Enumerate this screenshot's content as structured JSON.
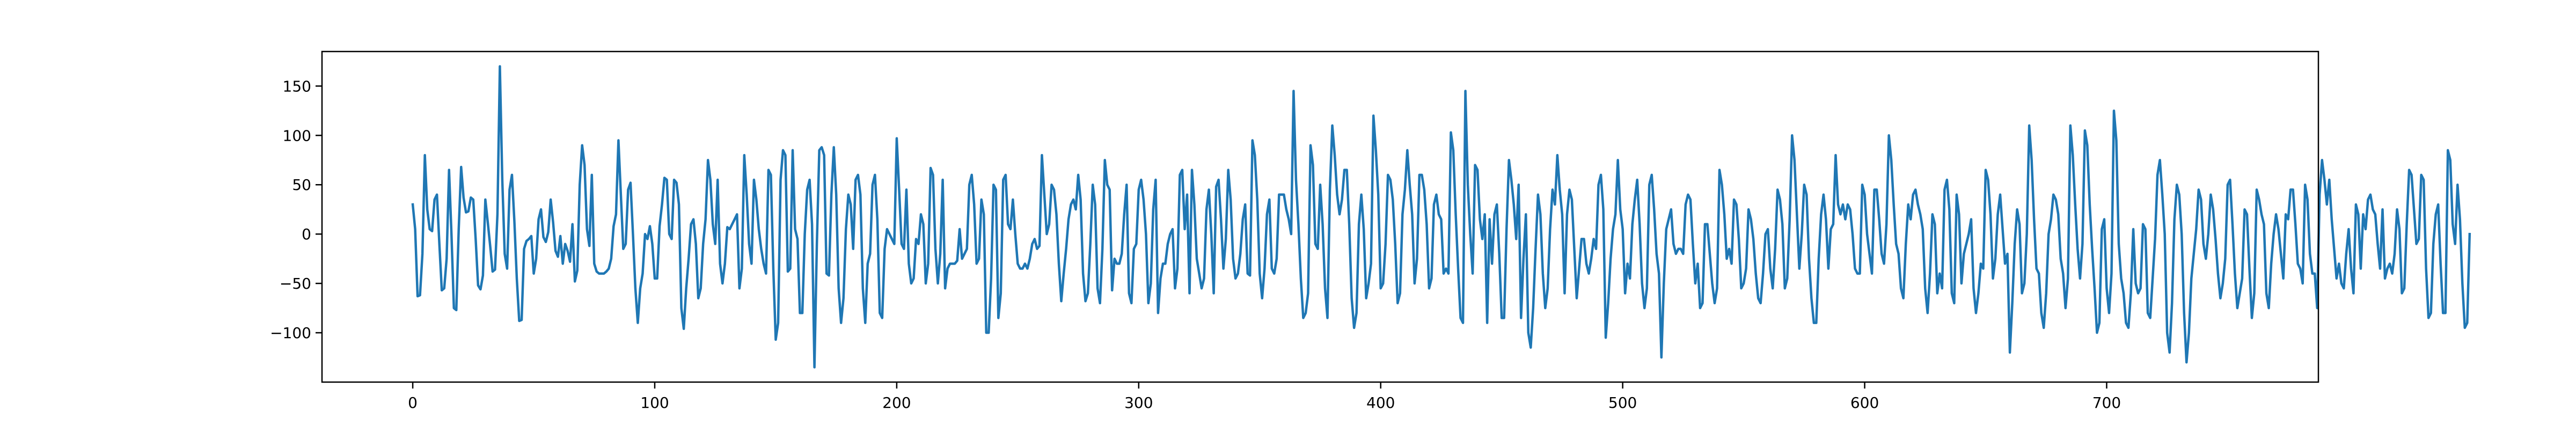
{
  "chart_data": {
    "type": "line",
    "title": "",
    "xlabel": "",
    "ylabel": "",
    "xlim": [
      -37.5,
      787.5
    ],
    "ylim": [
      -150,
      185
    ],
    "grid": false,
    "legend": "none",
    "series_color": "#1f77b4",
    "x_ticks": [
      0,
      100,
      200,
      300,
      400,
      500,
      600,
      700
    ],
    "x_tick_labels": [
      "0",
      "100",
      "200",
      "300",
      "400",
      "500",
      "600",
      "700"
    ],
    "y_ticks": [
      -100,
      -50,
      0,
      50,
      100,
      150
    ],
    "y_tick_labels": [
      "−100",
      "−50",
      "0",
      "50",
      "100",
      "150"
    ],
    "series": [
      {
        "x_start": 0,
        "x_step": 1,
        "values": [
          30,
          5,
          -63,
          -62,
          -20,
          80,
          25,
          5,
          3,
          35,
          40,
          -10,
          -57,
          -55,
          -25,
          65,
          0,
          -75,
          -77,
          5,
          68,
          37,
          22,
          23,
          37,
          35,
          -5,
          -52,
          -56,
          -42,
          35,
          12,
          -12,
          -38,
          -36,
          20,
          170,
          55,
          -20,
          -35,
          45,
          60,
          13,
          -45,
          -88,
          -87,
          -15,
          -7,
          -5,
          -2,
          -40,
          -25,
          15,
          25,
          -3,
          -8,
          2,
          35,
          12,
          -17,
          -23,
          -2,
          -30,
          -10,
          -17,
          -28,
          10,
          -48,
          -37,
          50,
          90,
          70,
          5,
          -12,
          60,
          -30,
          -38,
          -40,
          -40,
          -40,
          -38,
          -35,
          -25,
          8,
          20,
          95,
          40,
          -15,
          -10,
          45,
          52,
          0,
          -55,
          -90,
          -55,
          -40,
          0,
          -5,
          8,
          -10,
          -45,
          -45,
          8,
          30,
          57,
          55,
          0,
          -5,
          55,
          52,
          30,
          -75,
          -96,
          -55,
          -25,
          10,
          15,
          -10,
          -65,
          -55,
          -10,
          15,
          75,
          55,
          10,
          -10,
          55,
          -30,
          -50,
          -30,
          7,
          5,
          10,
          15,
          20,
          -55,
          -35,
          80,
          40,
          -10,
          -30,
          55,
          35,
          5,
          -15,
          -30,
          -40,
          65,
          60,
          -35,
          -107,
          -90,
          55,
          85,
          80,
          -38,
          -35,
          85,
          5,
          -5,
          -80,
          -80,
          0,
          45,
          55,
          10,
          -135,
          -10,
          85,
          88,
          80,
          -40,
          -42,
          40,
          88,
          40,
          -55,
          -90,
          -65,
          5,
          40,
          30,
          -15,
          55,
          60,
          40,
          -55,
          -90,
          -30,
          -20,
          50,
          60,
          15,
          -80,
          -85,
          -15,
          5,
          0,
          -5,
          -10,
          97,
          45,
          -10,
          -15,
          45,
          -30,
          -50,
          -45,
          -5,
          -10,
          20,
          10,
          -50,
          -30,
          67,
          60,
          -15,
          -50,
          -20,
          55,
          -55,
          -35,
          -30,
          -30,
          -30,
          -27,
          5,
          -25,
          -20,
          -15,
          50,
          60,
          30,
          -30,
          -25,
          35,
          20,
          -100,
          -100,
          -45,
          50,
          45,
          -85,
          -60,
          55,
          60,
          10,
          5,
          35,
          0,
          -30,
          -35,
          -35,
          -30,
          -35,
          -25,
          -10,
          -5,
          -15,
          -12,
          80,
          40,
          0,
          10,
          50,
          45,
          20,
          -30,
          -68,
          -40,
          -15,
          15,
          30,
          35,
          25,
          60,
          35,
          -40,
          -68,
          -60,
          -10,
          50,
          30,
          -55,
          -70,
          -15,
          75,
          50,
          45,
          -57,
          -25,
          -30,
          -30,
          -20,
          20,
          50,
          -60,
          -70,
          -15,
          -10,
          45,
          55,
          35,
          0,
          -70,
          -50,
          25,
          55,
          -80,
          -45,
          -30,
          -30,
          -10,
          0,
          5,
          -55,
          -35,
          60,
          65,
          5,
          40,
          -60,
          65,
          30,
          -25,
          -40,
          -55,
          -45,
          25,
          45,
          0,
          -60,
          48,
          55,
          15,
          -35,
          -5,
          65,
          35,
          -25,
          -45,
          -40,
          -20,
          15,
          30,
          -40,
          -42,
          95,
          80,
          35,
          -40,
          -65,
          -35,
          20,
          35,
          -35,
          -40,
          -25,
          40,
          40,
          40,
          25,
          15,
          0,
          145,
          55,
          10,
          -45,
          -85,
          -80,
          -60,
          90,
          70,
          -10,
          -15,
          50,
          10,
          -55,
          -85,
          45,
          110,
          80,
          40,
          20,
          35,
          65,
          65,
          10,
          -65,
          -95,
          -80,
          10,
          40,
          5,
          -65,
          -50,
          -30,
          120,
          85,
          40,
          -55,
          -50,
          -10,
          60,
          55,
          35,
          -10,
          -70,
          -60,
          20,
          45,
          85,
          50,
          20,
          -50,
          -25,
          60,
          60,
          45,
          10,
          -55,
          -45,
          30,
          40,
          20,
          15,
          -40,
          -35,
          -40,
          103,
          85,
          20,
          -35,
          -85,
          -90,
          145,
          50,
          0,
          -40,
          70,
          65,
          15,
          -5,
          20,
          -90,
          15,
          -30,
          20,
          30,
          -20,
          -85,
          -85,
          5,
          75,
          55,
          30,
          -5,
          50,
          -85,
          -25,
          20,
          -100,
          -115,
          -75,
          -15,
          40,
          20,
          -40,
          -75,
          -55,
          5,
          45,
          30,
          80,
          45,
          20,
          -60,
          20,
          45,
          35,
          -15,
          -65,
          -35,
          -5,
          -5,
          -30,
          -40,
          -25,
          -5,
          -15,
          50,
          60,
          25,
          -105,
          -70,
          -25,
          5,
          20,
          75,
          25,
          5,
          -60,
          -30,
          -45,
          10,
          35,
          55,
          10,
          -50,
          -75,
          -55,
          50,
          60,
          25,
          -20,
          -40,
          -125,
          -50,
          5,
          15,
          25,
          -10,
          -20,
          -15,
          -15,
          -20,
          30,
          40,
          35,
          -10,
          -50,
          -30,
          -75,
          -70,
          10,
          10,
          -20,
          -50,
          -70,
          -55,
          65,
          50,
          20,
          -25,
          -15,
          -30,
          35,
          30,
          -5,
          -55,
          -50,
          -35,
          25,
          15,
          -5,
          -40,
          -65,
          -70,
          -40,
          0,
          5,
          -35,
          -55,
          -15,
          45,
          35,
          10,
          -55,
          -45,
          15,
          100,
          75,
          20,
          -35,
          0,
          50,
          40,
          -25,
          -65,
          -90,
          -90,
          -25,
          20,
          40,
          15,
          -35,
          5,
          10,
          80,
          30,
          20,
          30,
          15,
          30,
          25,
          0,
          -35,
          -40,
          -40,
          50,
          40,
          0,
          -20,
          -40,
          45,
          45,
          15,
          -20,
          -30,
          10,
          100,
          75,
          30,
          -10,
          -20,
          -55,
          -65,
          -10,
          30,
          15,
          40,
          45,
          30,
          20,
          5,
          -55,
          -80,
          -40,
          20,
          10,
          -60,
          -40,
          -55,
          45,
          55,
          25,
          -60,
          -70,
          40,
          20,
          -50,
          -20,
          -10,
          0,
          15,
          -55,
          -80,
          -60,
          -30,
          -35,
          65,
          55,
          20,
          -45,
          -25,
          20,
          40,
          5,
          -30,
          -20,
          -120,
          -70,
          -10,
          25,
          10,
          -60,
          -50,
          0,
          110,
          75,
          15,
          -35,
          -40,
          -80,
          -95,
          -60,
          0,
          15,
          40,
          35,
          20,
          -25,
          -40,
          -75,
          -45,
          110,
          80,
          30,
          -15,
          -45,
          -10,
          105,
          90,
          30,
          -15,
          -55,
          -100,
          -90,
          5,
          15,
          -55,
          -80,
          -40,
          125,
          95,
          -10,
          -45,
          -60,
          -90,
          -95,
          -60,
          5,
          -50,
          -60,
          -55,
          10,
          5,
          -80,
          -85,
          -45,
          -5,
          60,
          75,
          40,
          0,
          -100,
          -120,
          -70,
          15,
          50,
          40,
          0,
          -80,
          -130,
          -100,
          -45,
          -20,
          5,
          45,
          35,
          -10,
          -25,
          0,
          40,
          25,
          -5,
          -40,
          -65,
          -50,
          -25,
          50,
          55,
          10,
          -40,
          -75,
          -60,
          -45,
          25,
          20,
          -35,
          -85,
          -60,
          45,
          35,
          20,
          10,
          -60,
          -75,
          -30,
          0,
          20,
          5,
          -20,
          -45,
          20,
          15,
          45,
          45,
          10,
          -30,
          -35,
          -50,
          50,
          35,
          -20,
          -40,
          -40,
          -75,
          40,
          75,
          55,
          30,
          55,
          15,
          -15,
          -45,
          -30,
          -50,
          -55,
          -20,
          5,
          -35,
          -60,
          30,
          20,
          -35,
          20,
          5,
          35,
          40,
          25,
          20,
          -10,
          -35,
          25,
          -45,
          -35,
          -30,
          -40,
          -20,
          25,
          5,
          -60,
          -55,
          10,
          65,
          60,
          25,
          -10,
          -5,
          60,
          55,
          -35,
          -85,
          -80,
          -10,
          20,
          30,
          -30,
          -80,
          -80,
          85,
          75,
          10,
          -10,
          50,
          15,
          -50,
          -95,
          -90,
          0
        ]
      }
    ]
  }
}
